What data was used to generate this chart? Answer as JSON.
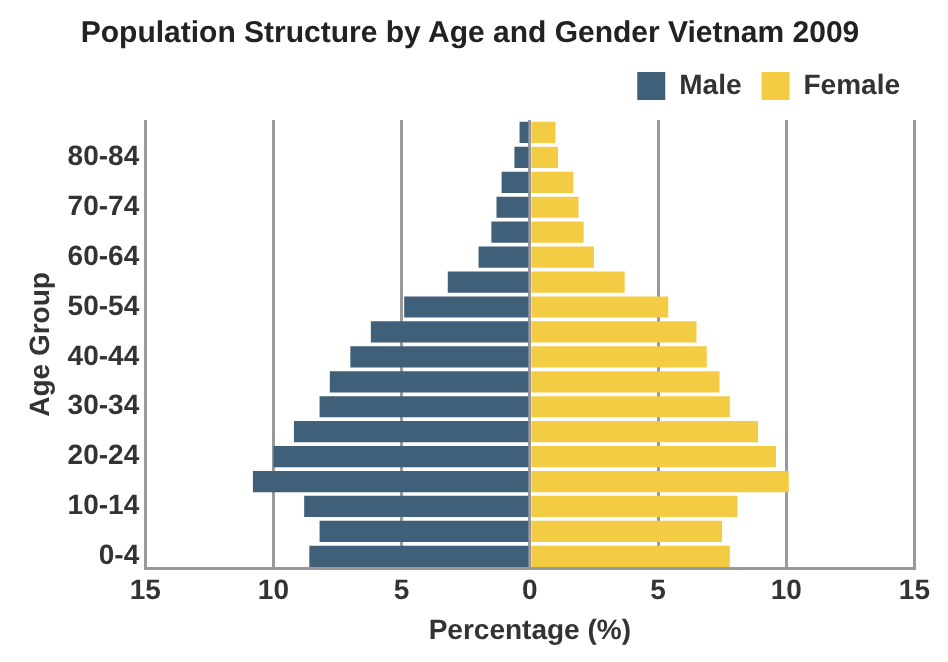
{
  "chart_data": {
    "type": "bar",
    "orientation": "horizontal",
    "stacked": true,
    "title": "Population Structure by Age and Gender Vietnam 2009",
    "xlabel": "Percentage (%)",
    "ylabel": "Age Group",
    "categories": [
      null,
      "80-84",
      null,
      "70-74",
      null,
      "60-64",
      null,
      "50-54",
      null,
      "40-44",
      null,
      "30-34",
      null,
      "20-24",
      null,
      "10-14",
      null,
      "0-4"
    ],
    "series": [
      {
        "name": "Male",
        "color": "#40607a",
        "values": [
          -0.4,
          -0.6,
          -1.1,
          -1.3,
          -1.5,
          -2.0,
          -3.2,
          -4.9,
          -6.2,
          -7.0,
          -7.8,
          -8.2,
          -9.2,
          -10.0,
          -10.8,
          -8.8,
          -8.2,
          -8.6
        ]
      },
      {
        "name": "Female",
        "color": "#f3cc43",
        "values": [
          1.0,
          1.1,
          1.7,
          1.9,
          2.1,
          2.5,
          3.7,
          5.4,
          6.5,
          6.9,
          7.4,
          7.8,
          8.9,
          9.6,
          10.1,
          8.1,
          7.5,
          7.8
        ]
      }
    ],
    "xlim": [
      -15,
      15
    ],
    "xticks": [
      {
        "value": -15,
        "label": "15"
      },
      {
        "value": -10,
        "label": "10"
      },
      {
        "value": -5,
        "label": "5"
      },
      0,
      5,
      10,
      15
    ],
    "grid": "x",
    "legend": "top right"
  }
}
